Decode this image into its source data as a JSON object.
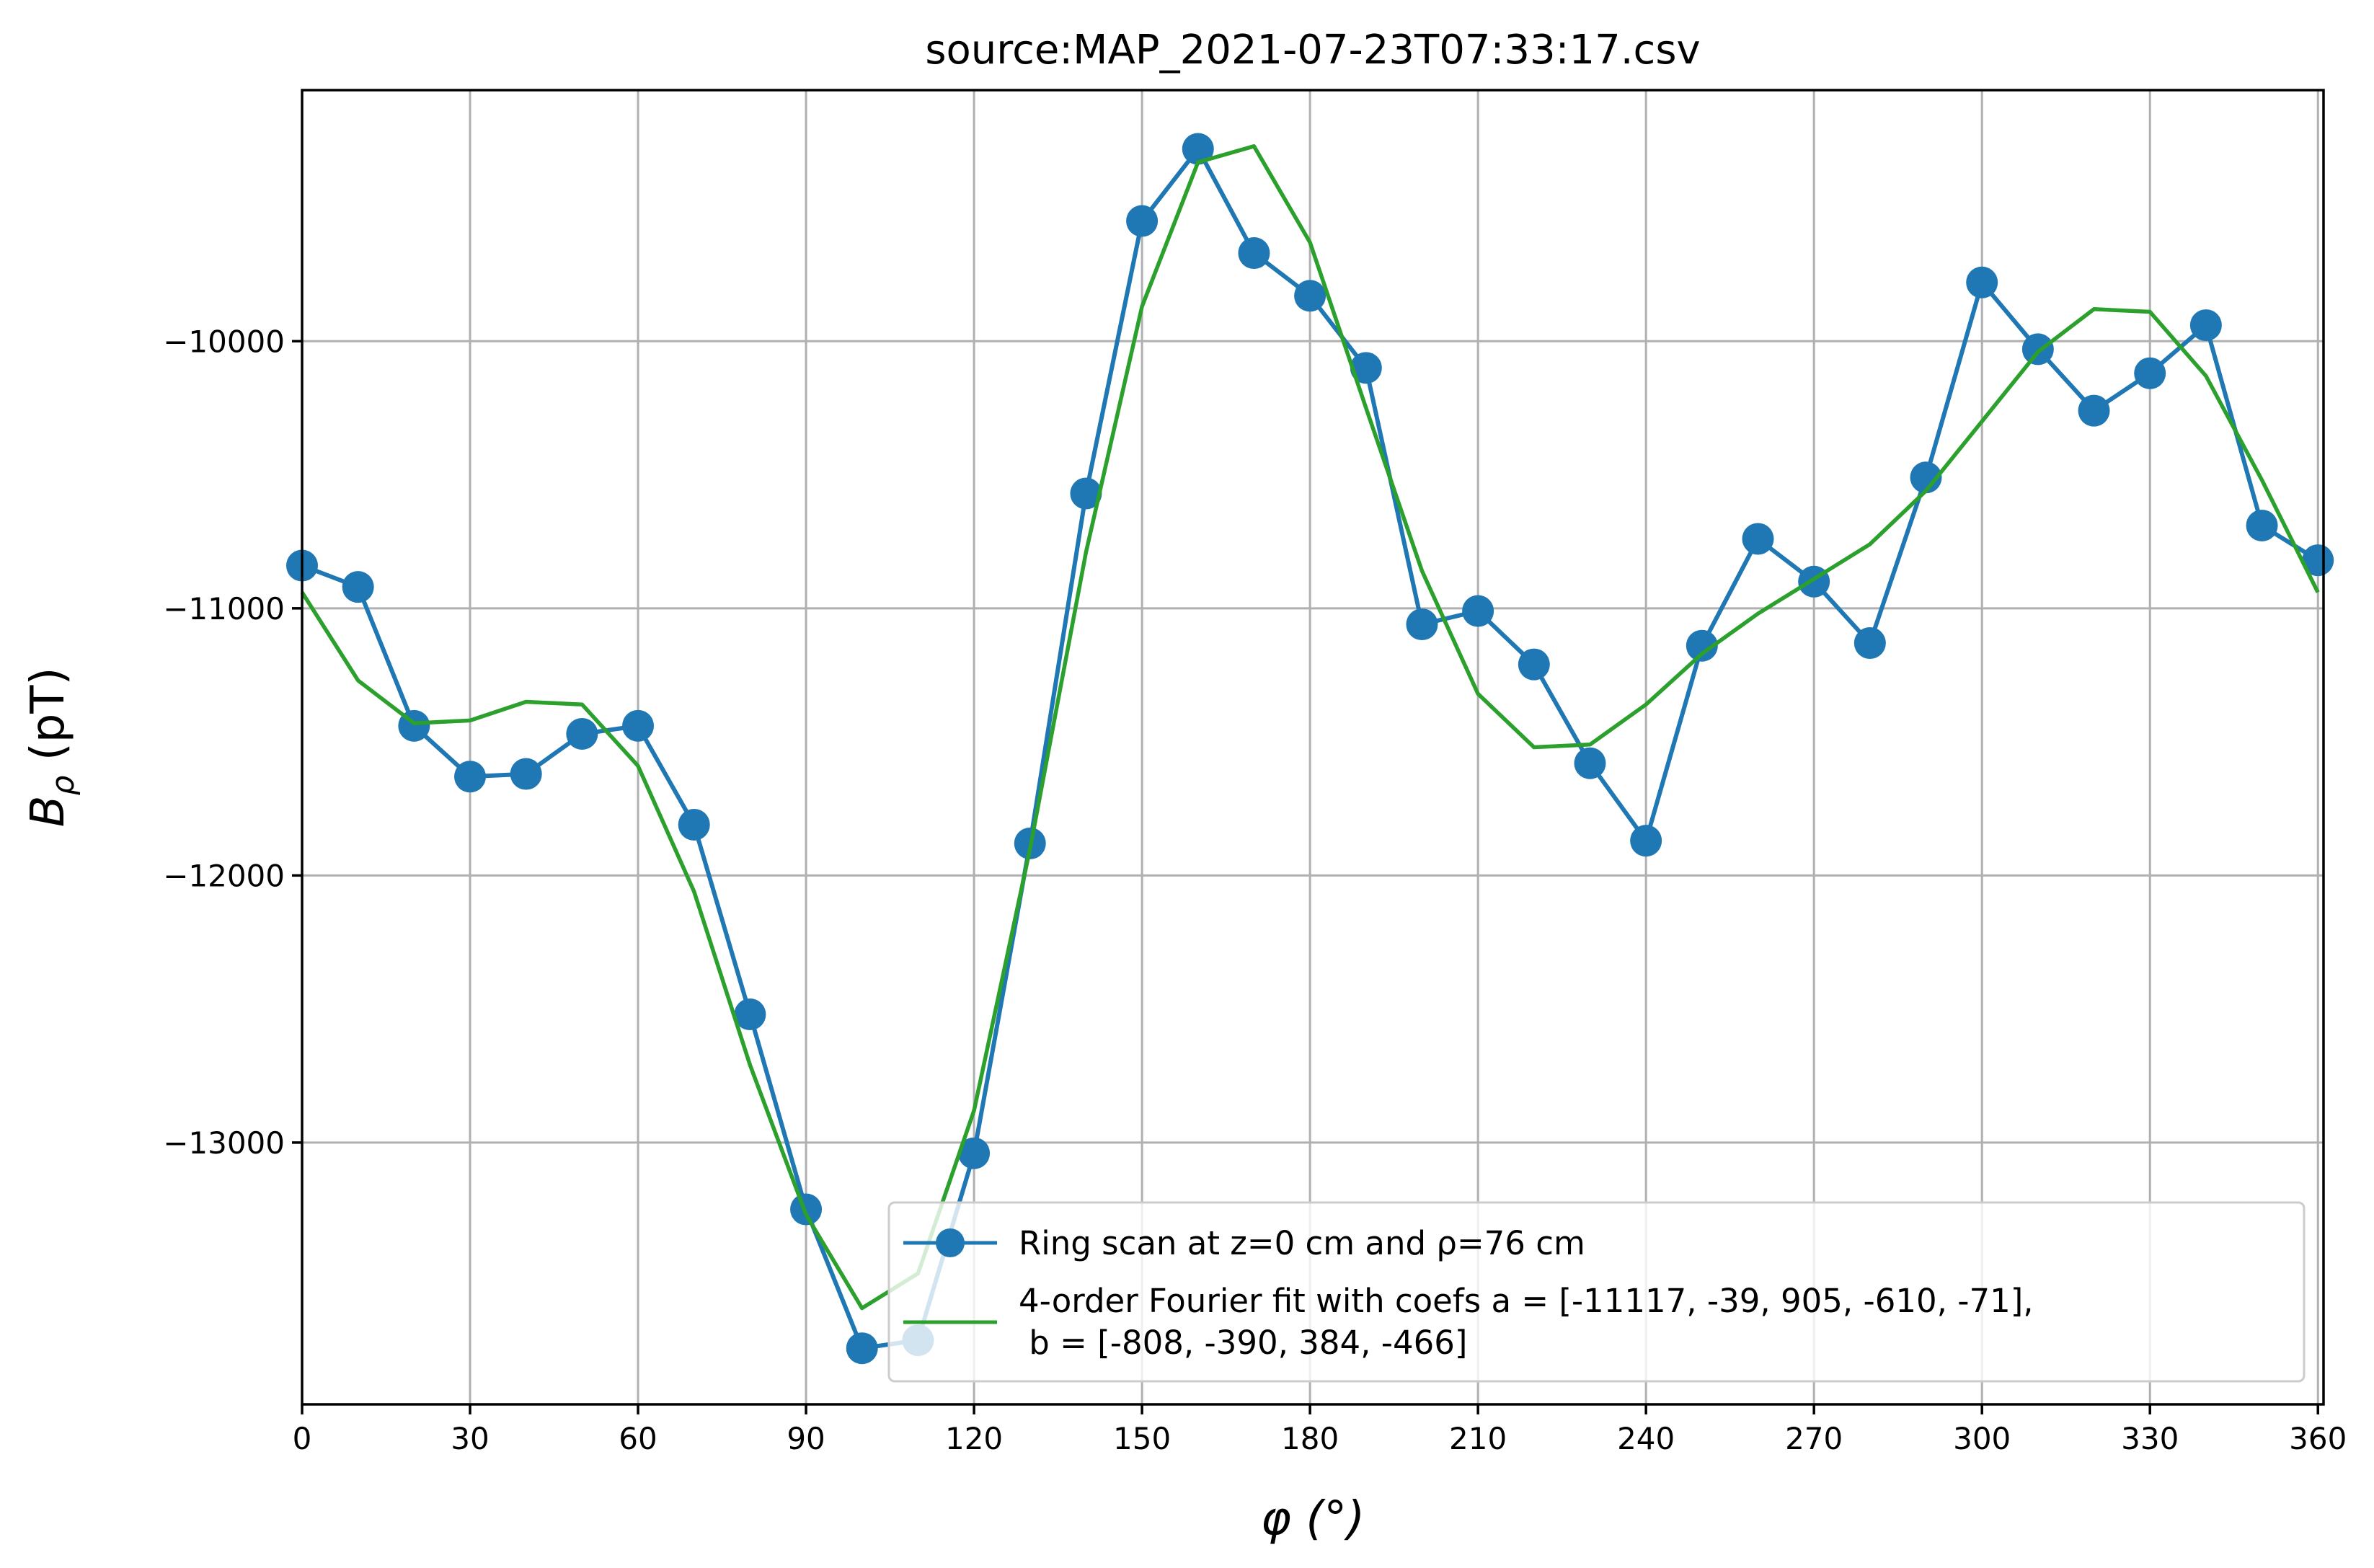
{
  "chart_data": {
    "type": "line",
    "title": "source:MAP_2021-07-23T07:33:17.csv",
    "xlabel": "φ (°)",
    "ylabel_main": "B",
    "ylabel_sub": "ρ",
    "ylabel_unit": " (pT)",
    "xlim": [
      0,
      361
    ],
    "ylim": [
      -13980,
      -9060
    ],
    "x_ticks": [
      0,
      30,
      60,
      90,
      120,
      150,
      180,
      210,
      240,
      270,
      300,
      330,
      360
    ],
    "y_ticks": [
      -13000,
      -12000,
      -11000,
      -10000
    ],
    "y_tick_labels": [
      "−13000",
      "−12000",
      "−11000",
      "−10000"
    ],
    "grid": true,
    "legend_position": "lower right",
    "colors": {
      "scan": "#1f77b4",
      "fit": "#2ca02c",
      "grid": "#b0b0b0",
      "frame": "#000000"
    },
    "series": [
      {
        "name": "Ring scan at z=0 cm and ρ=76 cm",
        "style": "line-marker",
        "x": [
          0,
          10,
          20,
          30,
          40,
          50,
          60,
          70,
          80,
          90,
          100,
          110,
          120,
          130,
          140,
          150,
          160,
          170,
          180,
          190,
          200,
          210,
          220,
          230,
          240,
          250,
          260,
          270,
          280,
          290,
          300,
          310,
          320,
          330,
          340,
          350,
          360
        ],
        "y": [
          -10840,
          -10920,
          -11440,
          -11630,
          -11620,
          -11470,
          -11440,
          -11810,
          -12520,
          -13250,
          -13770,
          -13740,
          -13040,
          -11880,
          -10570,
          -9550,
          -9280,
          -9670,
          -9830,
          -10100,
          -11060,
          -11010,
          -11210,
          -11580,
          -11870,
          -11140,
          -10740,
          -10900,
          -11130,
          -10510,
          -9780,
          -10030,
          -10260,
          -10120,
          -9940,
          -10690,
          -10820
        ]
      },
      {
        "name": "4-order Fourier fit with coefs a = [-11117, -39, 905, -610, -71],",
        "name_line2": " b = [-808, -390, 384, -466]",
        "style": "line",
        "x": [
          0,
          10,
          20,
          30,
          40,
          50,
          60,
          70,
          80,
          90,
          100,
          110,
          120,
          130,
          140,
          150,
          160,
          170,
          180,
          190,
          200,
          210,
          220,
          230,
          240,
          250,
          260,
          270,
          280,
          290,
          300,
          310,
          320,
          330,
          340,
          350,
          360
        ],
        "y": [
          -10940,
          -11270,
          -11430,
          -11420,
          -11350,
          -11360,
          -11590,
          -12060,
          -12710,
          -13270,
          -13620,
          -13490,
          -12880,
          -11900,
          -10790,
          -9870,
          -9330,
          -9270,
          -9630,
          -10250,
          -10860,
          -11320,
          -11520,
          -11510,
          -11360,
          -11170,
          -11020,
          -10890,
          -10760,
          -10560,
          -10300,
          -10040,
          -9880,
          -9890,
          -10130,
          -10520,
          -10940
        ]
      }
    ]
  }
}
